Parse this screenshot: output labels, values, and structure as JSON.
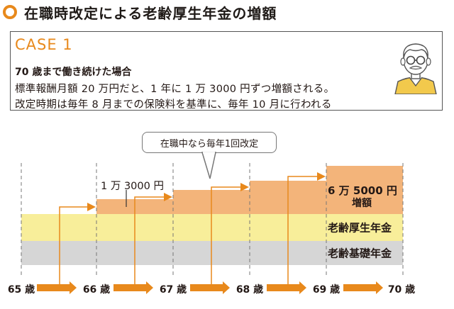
{
  "title": "在職時改定による老齢厚生年金の増額",
  "case": {
    "label": "CASE 1",
    "heading": "70 歳まで働き続けた場合",
    "line1": "標準報酬月額 20 万円だと、1 年に 1 万 3000 円ずつ増額される。",
    "line2": "改定時期は毎年 8 月までの保険料を基準に、毎年 10 月に行われる",
    "avatar_icon": "elderly-man-icon"
  },
  "callout": "在職中なら毎年1回改定",
  "bands": {
    "kosei": "老齢厚生年金",
    "kiso": "老齢基礎年金"
  },
  "step_labels": {
    "first": "1 万 3000 円",
    "last_amount": "6 万 5000 円",
    "last_suffix": "増額"
  },
  "ages": [
    "65 歳",
    "66 歳",
    "67 歳",
    "68 歳",
    "69 歳",
    "70 歳"
  ],
  "colors": {
    "accent": "#e8891c",
    "step_fill": "#f3b47a",
    "kosei_fill": "#f8ee9a",
    "kiso_fill": "#d6d6d6"
  }
}
